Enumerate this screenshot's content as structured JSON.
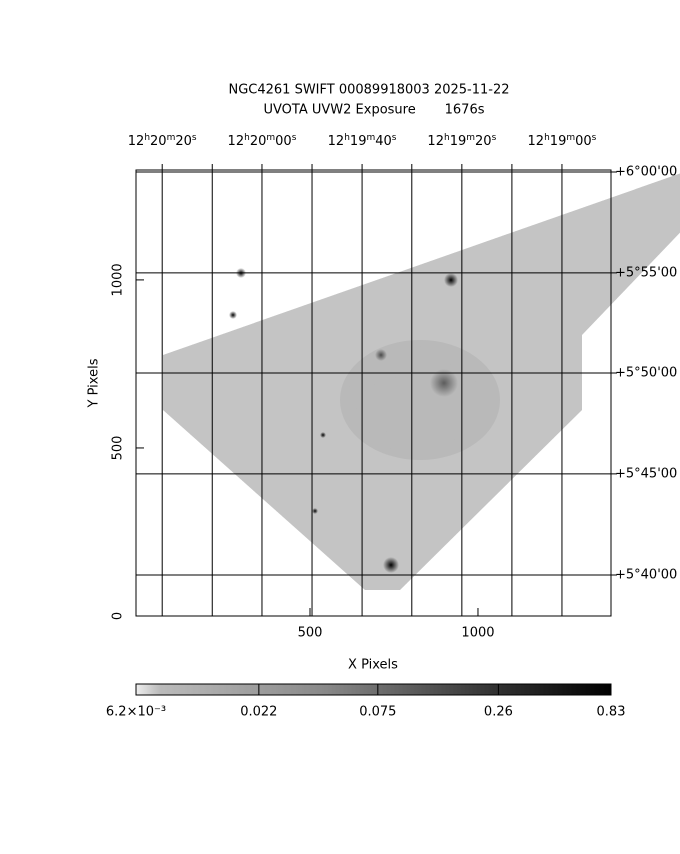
{
  "chart_data": {
    "type": "image",
    "title": "NGC4261 SWIFT 00089918003 2025-11-22",
    "subtitle": "UVOTA UVW2 Exposure       1676s",
    "x_label": "X Pixels",
    "y_label": "Y Pixels",
    "xlim": [
      -18,
      1396
    ],
    "ylim": [
      0,
      1327
    ],
    "xticks": [
      500,
      1000
    ],
    "yticks": [
      0,
      500,
      1000
    ],
    "ra_ticks": [
      {
        "value": 60,
        "label": "12h20m20s"
      },
      {
        "value": 357,
        "label": "12h20m00s"
      },
      {
        "value": 655,
        "label": "12h19m40s"
      },
      {
        "value": 952,
        "label": "12h19m20s"
      },
      {
        "value": 1250,
        "label": "12h19m00s"
      }
    ],
    "ra_grid": [
      60,
      209,
      357,
      506,
      655,
      803,
      952,
      1101,
      1250
    ],
    "dec_ticks": [
      {
        "value": 1321,
        "label": "+6°00'00"
      },
      {
        "value": 1021,
        "label": "+5°55'00"
      },
      {
        "value": 723,
        "label": "+5°50'00"
      },
      {
        "value": 423,
        "label": "+5°45'00"
      },
      {
        "value": 122,
        "label": "+5°40'00"
      }
    ],
    "colorbar": {
      "log": true,
      "lim": [
        0.0062,
        0.83
      ],
      "ticks": [
        {
          "value": 0.0062,
          "label": "6.2×10⁻³"
        },
        0.022,
        0.075,
        0.26,
        0.83
      ]
    }
  }
}
